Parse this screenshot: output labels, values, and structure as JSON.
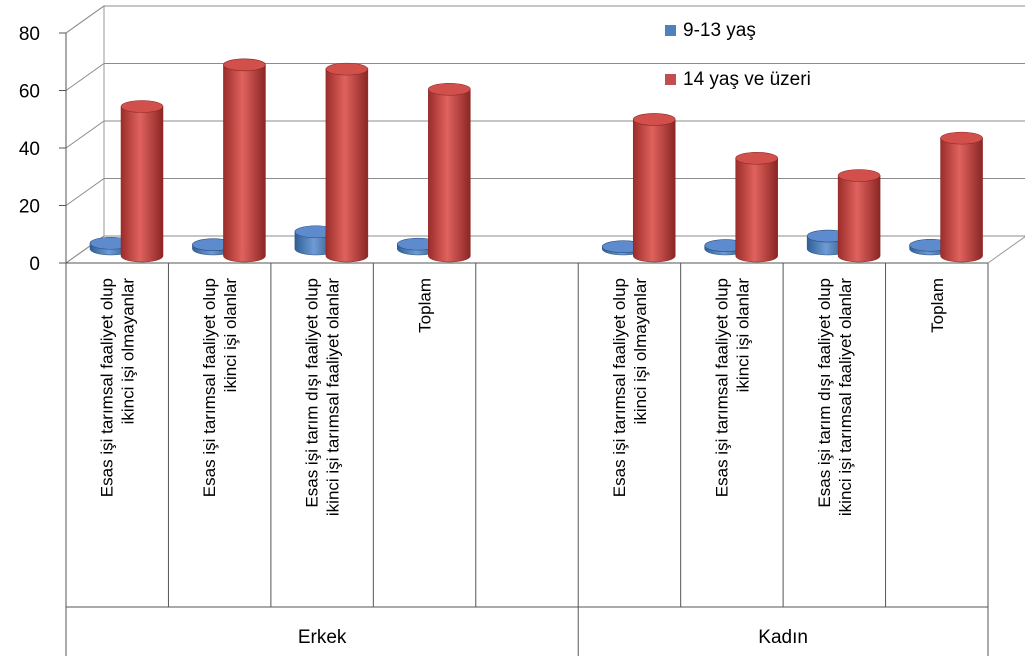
{
  "chart_data": {
    "type": "bar",
    "style": "3d-cylinder",
    "y_ticks": [
      0,
      20,
      40,
      60,
      80
    ],
    "ylim": [
      0,
      80
    ],
    "grid": true,
    "legend_position": "top-right",
    "colors": {
      "series1": "#4f81bd",
      "series2": "#c0504d"
    },
    "groups": [
      {
        "name": "Erkek",
        "categories": [
          [
            "Esas işi tarımsal faaliyet olup",
            "ikinci işi olmayanlar"
          ],
          [
            "Esas işi tarımsal faaliyet olup",
            "ikinci işi olanlar"
          ],
          [
            "Esas işi tarım dışı faaliyet olup",
            "ikinci işi tarımsal faaliyet olanlar"
          ],
          [
            "Toplam"
          ],
          []
        ]
      },
      {
        "name": "Kadın",
        "categories": [
          [
            "Esas işi tarımsal faaliyet olup",
            "ikinci işi olmayanlar"
          ],
          [
            "Esas işi tarımsal faaliyet olup",
            "ikinci işi olanlar"
          ],
          [
            "Esas işi tarım dışı faaliyet olup",
            "ikinci işi tarımsal faaliyet olanlar"
          ],
          [
            "Toplam"
          ]
        ]
      }
    ],
    "series": [
      {
        "name": "9-13 yaş",
        "values": [
          2,
          1.5,
          6,
          1.7,
          null,
          0.8,
          1.2,
          4.5,
          1.3
        ]
      },
      {
        "name": "14 yaş ve üzeri",
        "values": [
          52,
          66.5,
          65,
          58,
          null,
          47.5,
          34,
          28,
          41
        ]
      }
    ]
  }
}
